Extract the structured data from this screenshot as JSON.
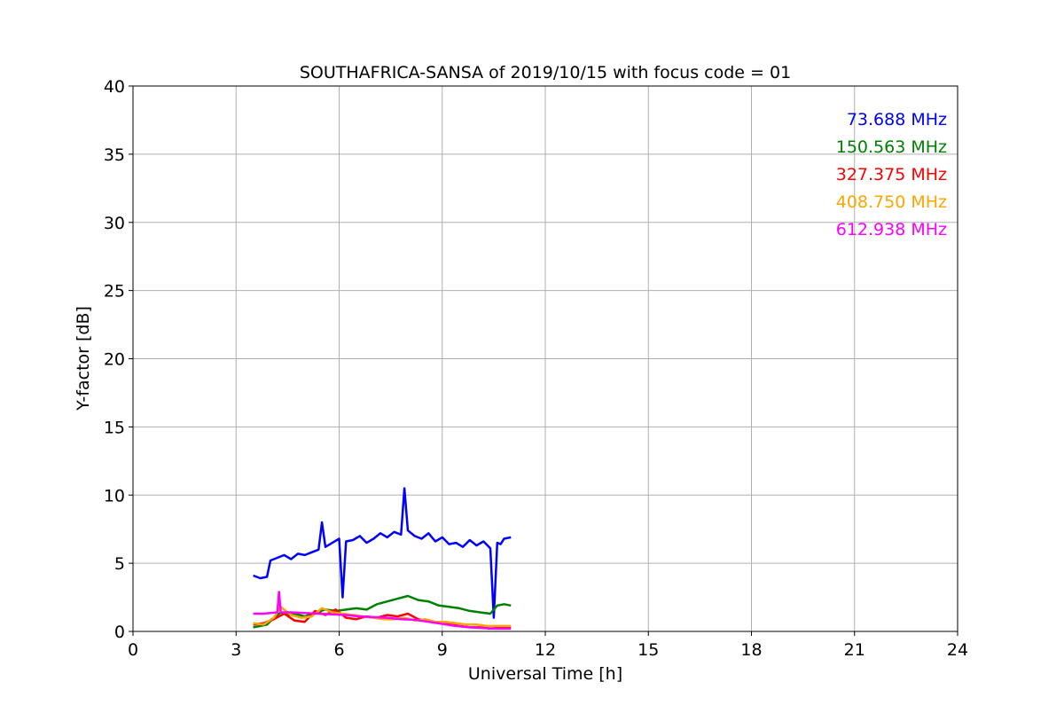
{
  "chart_data": {
    "type": "line",
    "title": "SOUTHAFRICA-SANSA of 2019/10/15 with focus code = 01",
    "xlabel": "Universal Time [h]",
    "ylabel": "Y-factor [dB]",
    "xlim": [
      0,
      24
    ],
    "ylim": [
      0,
      40
    ],
    "xticks": [
      "0",
      "3",
      "6",
      "9",
      "12",
      "15",
      "18",
      "21",
      "24"
    ],
    "yticks": [
      "0",
      "5",
      "10",
      "15",
      "20",
      "25",
      "30",
      "35",
      "40"
    ],
    "grid": true,
    "legend_position": "top-right",
    "series": [
      {
        "name": "73.688 MHz",
        "color": "#0000ff",
        "x": [
          3.5,
          3.7,
          3.9,
          4.0,
          4.2,
          4.4,
          4.6,
          4.8,
          5.0,
          5.2,
          5.4,
          5.5,
          5.6,
          5.8,
          6.0,
          6.1,
          6.2,
          6.4,
          6.6,
          6.8,
          7.0,
          7.2,
          7.4,
          7.6,
          7.8,
          7.9,
          8.0,
          8.2,
          8.4,
          8.6,
          8.8,
          9.0,
          9.2,
          9.4,
          9.6,
          9.8,
          10.0,
          10.2,
          10.4,
          10.5,
          10.6,
          10.7,
          10.8,
          11.0
        ],
        "y": [
          4.1,
          3.9,
          4.0,
          5.2,
          5.4,
          5.6,
          5.3,
          5.7,
          5.6,
          5.8,
          6.0,
          8.0,
          6.2,
          6.5,
          6.8,
          2.5,
          6.6,
          6.7,
          7.0,
          6.5,
          6.8,
          7.2,
          6.9,
          7.3,
          7.1,
          10.5,
          7.4,
          7.0,
          6.8,
          7.2,
          6.6,
          6.9,
          6.4,
          6.5,
          6.2,
          6.7,
          6.3,
          6.6,
          6.1,
          1.0,
          6.5,
          6.4,
          6.8,
          6.9
        ]
      },
      {
        "name": "150.563 MHz",
        "color": "#008000",
        "x": [
          3.5,
          3.7,
          3.9,
          4.1,
          4.3,
          4.5,
          4.7,
          5.0,
          5.3,
          5.6,
          5.9,
          6.2,
          6.5,
          6.8,
          7.1,
          7.4,
          7.7,
          8.0,
          8.3,
          8.6,
          8.9,
          9.2,
          9.5,
          9.8,
          10.1,
          10.4,
          10.6,
          10.8,
          11.0
        ],
        "y": [
          0.3,
          0.4,
          0.5,
          1.0,
          1.4,
          1.2,
          1.3,
          1.1,
          1.4,
          1.6,
          1.5,
          1.6,
          1.7,
          1.6,
          2.0,
          2.2,
          2.4,
          2.6,
          2.3,
          2.2,
          1.9,
          1.8,
          1.7,
          1.5,
          1.4,
          1.3,
          1.9,
          2.0,
          1.9
        ]
      },
      {
        "name": "327.375 MHz",
        "color": "#ff0000",
        "x": [
          3.5,
          3.8,
          4.1,
          4.4,
          4.7,
          5.0,
          5.3,
          5.6,
          5.9,
          6.2,
          6.5,
          6.8,
          7.1,
          7.4,
          7.7,
          8.0,
          8.3,
          8.6,
          8.9,
          9.2,
          9.5,
          9.8,
          10.1,
          10.4,
          10.7,
          11.0
        ],
        "y": [
          0.5,
          0.6,
          0.9,
          1.3,
          0.8,
          0.7,
          1.5,
          1.2,
          1.6,
          1.0,
          0.9,
          1.1,
          1.0,
          1.2,
          1.1,
          1.3,
          0.9,
          0.8,
          0.6,
          0.6,
          0.4,
          0.3,
          0.3,
          0.2,
          0.3,
          0.3
        ]
      },
      {
        "name": "408.750 MHz",
        "color": "#ffa500",
        "x": [
          3.5,
          3.8,
          4.1,
          4.3,
          4.6,
          4.9,
          5.2,
          5.5,
          5.8,
          6.1,
          6.4,
          6.7,
          7.0,
          7.3,
          7.6,
          7.9,
          8.2,
          8.5,
          8.8,
          9.1,
          9.4,
          9.7,
          10.0,
          10.3,
          10.6,
          11.0
        ],
        "y": [
          0.6,
          0.5,
          1.0,
          1.8,
          1.2,
          1.0,
          1.1,
          1.7,
          1.4,
          1.3,
          1.2,
          1.1,
          1.0,
          0.9,
          0.9,
          1.0,
          0.8,
          0.9,
          0.7,
          0.7,
          0.6,
          0.5,
          0.5,
          0.4,
          0.4,
          0.4
        ]
      },
      {
        "name": "612.938 MHz",
        "color": "#ff00ff",
        "x": [
          3.5,
          3.8,
          4.0,
          4.2,
          4.25,
          4.3,
          4.6,
          5.0,
          5.4,
          5.8,
          6.2,
          6.6,
          7.0,
          7.4,
          7.8,
          8.2,
          8.6,
          9.0,
          9.4,
          9.8,
          10.2,
          10.6,
          11.0
        ],
        "y": [
          1.3,
          1.3,
          1.35,
          1.4,
          2.9,
          1.4,
          1.4,
          1.35,
          1.3,
          1.25,
          1.2,
          1.1,
          1.05,
          1.0,
          0.9,
          0.85,
          0.7,
          0.55,
          0.4,
          0.3,
          0.25,
          0.2,
          0.2
        ]
      }
    ]
  }
}
